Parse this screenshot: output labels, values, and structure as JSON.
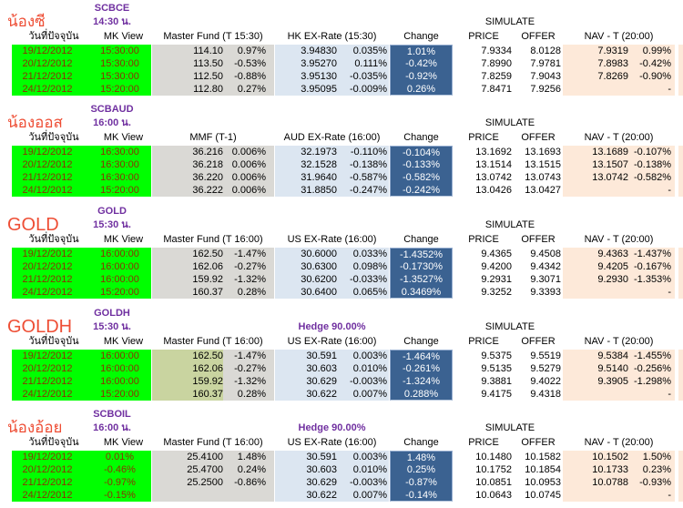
{
  "report": {
    "simulate_label": "SIMULATE",
    "columns": {
      "date": "วันที่ปัจจุบัน",
      "mk_view": "MK View",
      "change": "Change",
      "price": "PRICE",
      "offer": "OFFER",
      "nav": "NAV - T (20:00)"
    },
    "colors": {
      "row_green": "#00ff00",
      "fund_gray": "#dad9d5",
      "fund_khaki": "#c9d4a0",
      "ex_blue": "#dce6f1",
      "change_blue": "#3b6291",
      "nav_peach": "#fde9d9",
      "purple": "#7030a0",
      "title_red": "#ee4e35",
      "date_maroon": "#8b3203"
    },
    "sections": [
      {
        "title": "น้องซี",
        "code": "SCBCE",
        "time": "14:30 น.",
        "hedge": "",
        "fund_header": "Master Fund (T 15:30)",
        "ex_header": "HK EX-Rate (15:30)",
        "fund_value_style": "gray",
        "rows": [
          {
            "date": "19/12/2012",
            "mk": "15:30:00",
            "fund": "114.10",
            "fund_pct": "0.97%",
            "ex": "3.94830",
            "ex_pct": "0.035%",
            "change": "1.01%",
            "price": "7.9334",
            "offer": "8.0128",
            "nav": "7.9319",
            "nav_pct": "0.99%"
          },
          {
            "date": "20/12/2012",
            "mk": "15:30:00",
            "fund": "113.50",
            "fund_pct": "-0.53%",
            "ex": "3.95270",
            "ex_pct": "0.111%",
            "change": "-0.42%",
            "price": "7.8990",
            "offer": "7.9781",
            "nav": "7.8983",
            "nav_pct": "-0.42%"
          },
          {
            "date": "21/12/2012",
            "mk": "15:30:00",
            "fund": "112.50",
            "fund_pct": "-0.88%",
            "ex": "3.95130",
            "ex_pct": "-0.035%",
            "change": "-0.92%",
            "price": "7.8259",
            "offer": "7.9043",
            "nav": "7.8269",
            "nav_pct": "-0.90%"
          },
          {
            "date": "24/12/2012",
            "mk": "15:20:00",
            "fund": "112.80",
            "fund_pct": "0.27%",
            "ex": "3.95095",
            "ex_pct": "-0.009%",
            "change": "0.26%",
            "price": "7.8471",
            "offer": "7.9256",
            "nav": "",
            "nav_pct": "-"
          }
        ]
      },
      {
        "title": "น้องออส",
        "code": "SCBAUD",
        "time": "16:00 น.",
        "hedge": "",
        "fund_header": "MMF (T-1)",
        "ex_header": "AUD EX-Rate (16:00)",
        "fund_value_style": "gray",
        "rows": [
          {
            "date": "19/12/2012",
            "mk": "16:30:00",
            "fund": "36.216",
            "fund_pct": "0.006%",
            "ex": "32.1973",
            "ex_pct": "-0.110%",
            "change": "-0.104%",
            "price": "13.1692",
            "offer": "13.1693",
            "nav": "13.1689",
            "nav_pct": "-0.107%"
          },
          {
            "date": "20/12/2012",
            "mk": "16:30:00",
            "fund": "36.218",
            "fund_pct": "0.006%",
            "ex": "32.1528",
            "ex_pct": "-0.138%",
            "change": "-0.133%",
            "price": "13.1514",
            "offer": "13.1515",
            "nav": "13.1507",
            "nav_pct": "-0.138%"
          },
          {
            "date": "21/12/2012",
            "mk": "16:30:00",
            "fund": "36.220",
            "fund_pct": "0.006%",
            "ex": "31.9640",
            "ex_pct": "-0.587%",
            "change": "-0.582%",
            "price": "13.0742",
            "offer": "13.0743",
            "nav": "13.0742",
            "nav_pct": "-0.582%"
          },
          {
            "date": "24/12/2012",
            "mk": "15:20:00",
            "fund": "36.222",
            "fund_pct": "0.006%",
            "ex": "31.8850",
            "ex_pct": "-0.247%",
            "change": "-0.242%",
            "price": "13.0426",
            "offer": "13.0427",
            "nav": "",
            "nav_pct": "-"
          }
        ]
      },
      {
        "title": "GOLD",
        "code": "GOLD",
        "time": "15:30 น.",
        "hedge": "",
        "fund_header": "Master Fund (T 16:00)",
        "ex_header": "US EX-Rate (16:00)",
        "fund_value_style": "gray",
        "rows": [
          {
            "date": "19/12/2012",
            "mk": "16:00:00",
            "fund": "162.50",
            "fund_pct": "-1.47%",
            "ex": "30.6000",
            "ex_pct": "0.033%",
            "change": "-1.4352%",
            "price": "9.4365",
            "offer": "9.4508",
            "nav": "9.4363",
            "nav_pct": "-1.437%"
          },
          {
            "date": "20/12/2012",
            "mk": "16:00:00",
            "fund": "162.06",
            "fund_pct": "-0.27%",
            "ex": "30.6300",
            "ex_pct": "0.098%",
            "change": "-0.1730%",
            "price": "9.4200",
            "offer": "9.4342",
            "nav": "9.4205",
            "nav_pct": "-0.167%"
          },
          {
            "date": "21/12/2012",
            "mk": "16:00:00",
            "fund": "159.92",
            "fund_pct": "-1.32%",
            "ex": "30.6200",
            "ex_pct": "-0.033%",
            "change": "-1.3527%",
            "price": "9.2931",
            "offer": "9.3071",
            "nav": "9.2930",
            "nav_pct": "-1.353%"
          },
          {
            "date": "24/12/2012",
            "mk": "15:20:00",
            "fund": "160.37",
            "fund_pct": "0.28%",
            "ex": "30.6400",
            "ex_pct": "0.065%",
            "change": "0.3469%",
            "price": "9.3252",
            "offer": "9.3393",
            "nav": "",
            "nav_pct": "-"
          }
        ]
      },
      {
        "title": "GOLDH",
        "code": "GOLDH",
        "time": "15:30 น.",
        "hedge": "Hedge 90.00%",
        "fund_header": "Master Fund (T 16:00)",
        "ex_header": "US EX-Rate (16:00)",
        "fund_value_style": "khaki",
        "rows": [
          {
            "date": "19/12/2012",
            "mk": "16:00:00",
            "fund": "162.50",
            "fund_pct": "-1.47%",
            "ex": "30.591",
            "ex_pct": "0.003%",
            "change": "-1.464%",
            "price": "9.5375",
            "offer": "9.5519",
            "nav": "9.5384",
            "nav_pct": "-1.455%"
          },
          {
            "date": "20/12/2012",
            "mk": "16:00:00",
            "fund": "162.06",
            "fund_pct": "-0.27%",
            "ex": "30.603",
            "ex_pct": "0.010%",
            "change": "-0.261%",
            "price": "9.5135",
            "offer": "9.5279",
            "nav": "9.5140",
            "nav_pct": "-0.256%"
          },
          {
            "date": "21/12/2012",
            "mk": "16:00:00",
            "fund": "159.92",
            "fund_pct": "-1.32%",
            "ex": "30.629",
            "ex_pct": "-0.003%",
            "change": "-1.324%",
            "price": "9.3881",
            "offer": "9.4022",
            "nav": "9.3905",
            "nav_pct": "-1.298%"
          },
          {
            "date": "24/12/2012",
            "mk": "15:20:00",
            "fund": "160.37",
            "fund_pct": "0.28%",
            "ex": "30.622",
            "ex_pct": "0.007%",
            "change": "0.288%",
            "price": "9.4175",
            "offer": "9.4318",
            "nav": "",
            "nav_pct": "-"
          }
        ]
      },
      {
        "title": "น้องอ้อย",
        "code": "SCBOIL",
        "time": "16:00 น.",
        "hedge": "Hedge 90.00%",
        "fund_header": "Master Fund (T 16:00)",
        "ex_header": "US EX-Rate (16:00)",
        "fund_value_style": "gray",
        "rows": [
          {
            "date": "19/12/2012",
            "mk": "0.01%",
            "fund": "25.4100",
            "fund_pct": "1.48%",
            "ex": "30.591",
            "ex_pct": "0.003%",
            "change": "1.48%",
            "price": "10.1480",
            "offer": "10.1582",
            "nav": "10.1502",
            "nav_pct": "1.50%"
          },
          {
            "date": "20/12/2012",
            "mk": "-0.46%",
            "fund": "25.4700",
            "fund_pct": "0.24%",
            "ex": "30.603",
            "ex_pct": "0.010%",
            "change": "0.25%",
            "price": "10.1752",
            "offer": "10.1854",
            "nav": "10.1733",
            "nav_pct": "0.23%"
          },
          {
            "date": "21/12/2012",
            "mk": "-0.97%",
            "fund": "25.2500",
            "fund_pct": "-0.86%",
            "ex": "30.629",
            "ex_pct": "-0.003%",
            "change": "-0.87%",
            "price": "10.0851",
            "offer": "10.0953",
            "nav": "10.0788",
            "nav_pct": "-0.93%"
          },
          {
            "date": "24/12/2012",
            "mk": "-0.15%",
            "fund": "",
            "fund_pct": "",
            "ex": "30.622",
            "ex_pct": "0.007%",
            "change": "-0.14%",
            "price": "10.0643",
            "offer": "10.0745",
            "nav": "",
            "nav_pct": "-"
          }
        ]
      }
    ]
  }
}
